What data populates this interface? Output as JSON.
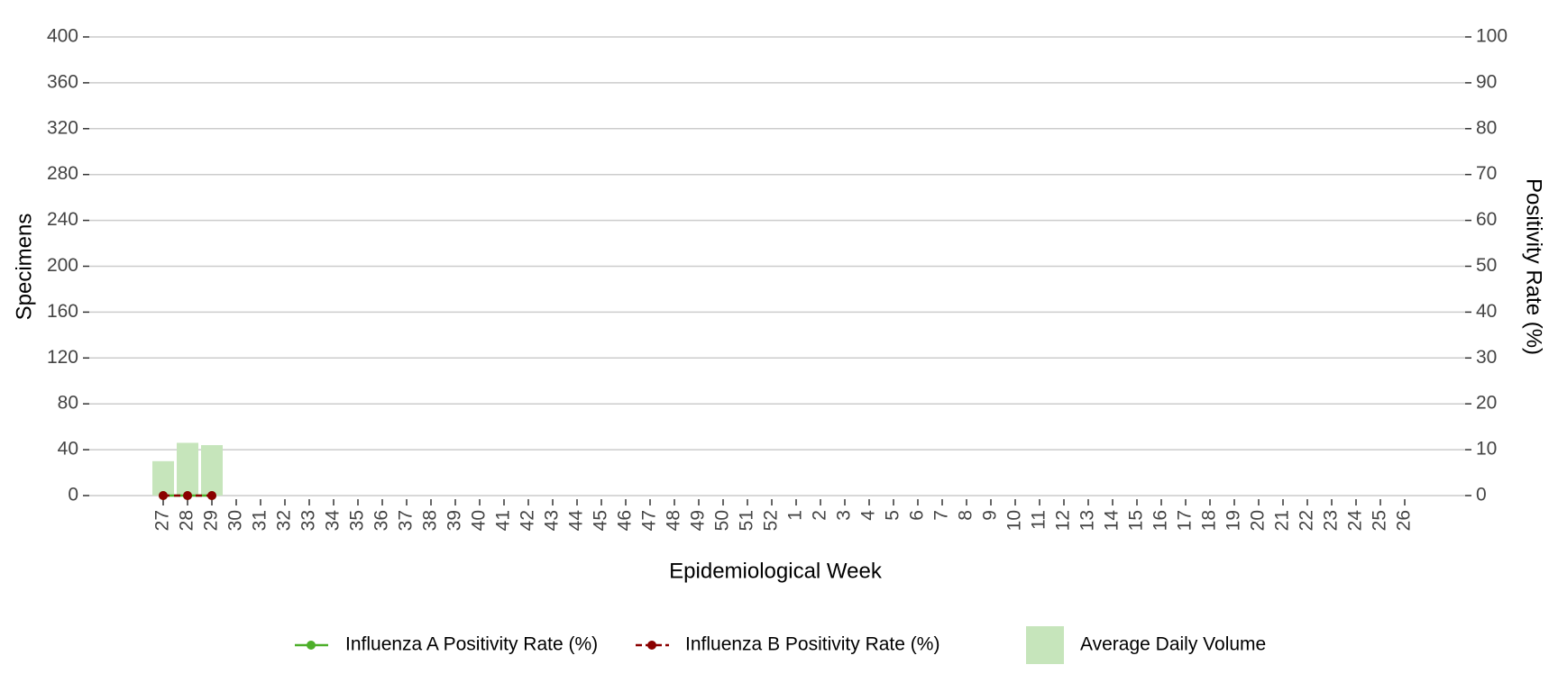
{
  "chart_data": {
    "type": "bar",
    "x_label": "Epidemiological Week",
    "y_label": "Specimens",
    "y2_label": "Positivity Rate (%)",
    "categories": [
      "27",
      "28",
      "29",
      "30",
      "31",
      "32",
      "33",
      "34",
      "35",
      "36",
      "37",
      "38",
      "39",
      "40",
      "41",
      "42",
      "43",
      "44",
      "45",
      "46",
      "47",
      "48",
      "49",
      "50",
      "51",
      "52",
      "1",
      "2",
      "3",
      "4",
      "5",
      "6",
      "7",
      "8",
      "9",
      "10",
      "11",
      "12",
      "13",
      "14",
      "15",
      "16",
      "17",
      "18",
      "19",
      "20",
      "21",
      "22",
      "23",
      "24",
      "25",
      "26"
    ],
    "series": [
      {
        "name": "Influenza A Positivity Rate (%)",
        "type": "line",
        "axis": "y2",
        "color": "#4daf2a",
        "dash": false,
        "values": [
          0,
          0,
          0,
          null,
          null,
          null,
          null,
          null,
          null,
          null,
          null,
          null,
          null,
          null,
          null,
          null,
          null,
          null,
          null,
          null,
          null,
          null,
          null,
          null,
          null,
          null,
          null,
          null,
          null,
          null,
          null,
          null,
          null,
          null,
          null,
          null,
          null,
          null,
          null,
          null,
          null,
          null,
          null,
          null,
          null,
          null,
          null,
          null,
          null,
          null,
          null,
          null
        ]
      },
      {
        "name": "Influenza B Positivity Rate (%)",
        "type": "line",
        "axis": "y2",
        "color": "#8b0000",
        "dash": true,
        "values": [
          0,
          0,
          0,
          null,
          null,
          null,
          null,
          null,
          null,
          null,
          null,
          null,
          null,
          null,
          null,
          null,
          null,
          null,
          null,
          null,
          null,
          null,
          null,
          null,
          null,
          null,
          null,
          null,
          null,
          null,
          null,
          null,
          null,
          null,
          null,
          null,
          null,
          null,
          null,
          null,
          null,
          null,
          null,
          null,
          null,
          null,
          null,
          null,
          null,
          null,
          null,
          null
        ]
      },
      {
        "name": "Average Daily Volume",
        "type": "bar",
        "axis": "y",
        "color": "#c6e5bb",
        "values": [
          30,
          46,
          44,
          null,
          null,
          null,
          null,
          null,
          null,
          null,
          null,
          null,
          null,
          null,
          null,
          null,
          null,
          null,
          null,
          null,
          null,
          null,
          null,
          null,
          null,
          null,
          null,
          null,
          null,
          null,
          null,
          null,
          null,
          null,
          null,
          null,
          null,
          null,
          null,
          null,
          null,
          null,
          null,
          null,
          null,
          null,
          null,
          null,
          null,
          null,
          null,
          null
        ]
      }
    ],
    "ylim": [
      0,
      400
    ],
    "yticks": [
      0,
      40,
      80,
      120,
      160,
      200,
      240,
      280,
      320,
      360,
      400
    ],
    "y2lim": [
      0,
      100
    ],
    "y2ticks": [
      0,
      10,
      20,
      30,
      40,
      50,
      60,
      70,
      80,
      90,
      100
    ],
    "grid": true,
    "legend": "bottom"
  }
}
